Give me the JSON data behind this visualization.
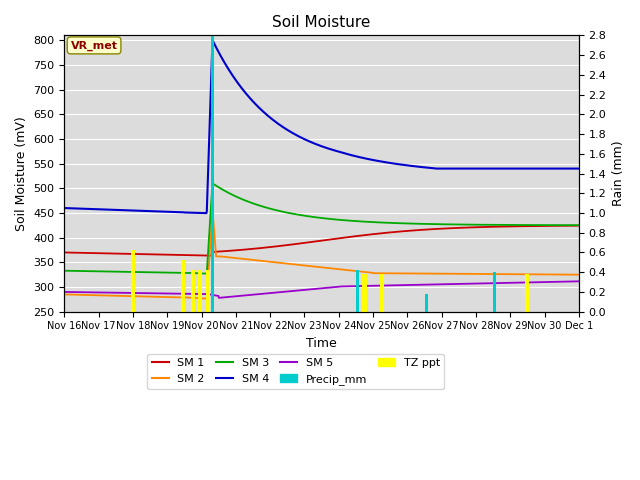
{
  "title": "Soil Moisture",
  "xlabel": "Time",
  "ylabel_left": "Soil Moisture (mV)",
  "ylabel_right": "Rain (mm)",
  "ylim_left": [
    250,
    810
  ],
  "ylim_right": [
    0.0,
    2.8
  ],
  "plot_bg_color": "#dcdcdc",
  "station_label": "VR_met",
  "tick_labels": [
    "Nov 16",
    "Nov 17",
    "Nov 18",
    "Nov 19",
    "Nov 20",
    "Nov 21",
    "Nov 22",
    "Nov 23",
    "Nov 24",
    "Nov 25",
    "Nov 26",
    "Nov 27",
    "Nov 28",
    "Nov 29",
    "Nov 30",
    "Dec 1"
  ],
  "sm1_color": "#cc0000",
  "sm2_color": "#ff8800",
  "sm3_color": "#00aa00",
  "sm4_color": "#0000cc",
  "sm5_color": "#9900cc",
  "precip_color": "#00cccc",
  "tz_color": "#ffff00",
  "yticks": [
    250,
    300,
    350,
    400,
    450,
    500,
    550,
    600,
    650,
    700,
    750,
    800
  ],
  "rain_yticks": [
    0.0,
    0.2,
    0.4,
    0.6,
    0.8,
    1.0,
    1.2,
    1.4,
    1.6,
    1.8,
    2.0,
    2.2,
    2.4,
    2.6,
    2.8
  ]
}
